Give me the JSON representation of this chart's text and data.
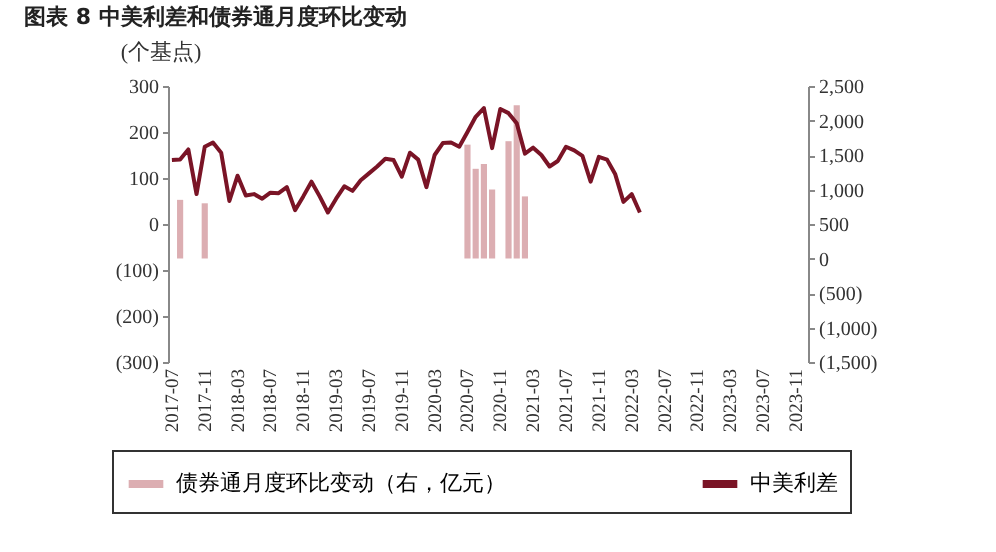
{
  "chart_data": {
    "type": "bar",
    "title": "图表 8  中美利差和债券通月度环比变动",
    "ylabel": "(个基点)",
    "categories": [
      "2017-07",
      null,
      null,
      null,
      "2017-11",
      null,
      null,
      null,
      "2018-03",
      null,
      null,
      null,
      "2018-07",
      null,
      null,
      null,
      "2018-11",
      null,
      null,
      null,
      "2019-03",
      null,
      null,
      null,
      "2019-07",
      null,
      null,
      null,
      "2019-11",
      null,
      null,
      null,
      "2020-03",
      null,
      null,
      null,
      "2020-07",
      null,
      null,
      null,
      "2020-11",
      null,
      null,
      null,
      "2021-03",
      null,
      null,
      null,
      "2021-07",
      null,
      null,
      null,
      "2021-11",
      null,
      null,
      null,
      "2022-03",
      null,
      null,
      null,
      "2022-07",
      null,
      null,
      null,
      "2022-11",
      null,
      null,
      null,
      "2023-03",
      null,
      null,
      null,
      "2023-07",
      null,
      null,
      null,
      "2023-11",
      null
    ],
    "series": [
      {
        "name": "债券通月度环比变动（右，亿元）",
        "axis": "y2",
        "color": "#dcaeb2",
        "values": [
          null,
          850,
          null,
          null,
          800,
          null,
          null,
          null,
          null,
          null,
          null,
          null,
          null,
          null,
          null,
          null,
          null,
          null,
          null,
          null,
          null,
          null,
          null,
          null,
          null,
          null,
          null,
          null,
          null,
          null,
          null,
          null,
          null,
          null,
          null,
          null,
          1650,
          1300,
          1370,
          1000,
          null,
          1700,
          2220,
          900,
          null,
          null,
          null,
          null,
          null,
          null,
          null,
          null,
          null,
          null,
          null,
          null,
          null,
          null,
          null,
          null,
          null,
          null,
          null,
          null,
          null,
          null,
          null,
          null,
          null,
          null,
          null,
          null,
          null,
          null,
          null,
          null,
          null,
          null
        ]
      },
      {
        "name": "中美利差",
        "type": "line",
        "color": "#7a1426",
        "values": [
          139,
          140,
          162,
          65,
          168,
          177,
          155,
          50,
          105,
          62,
          65,
          55,
          68,
          67,
          80,
          30,
          60,
          92,
          60,
          25,
          55,
          82,
          72,
          95,
          110,
          125,
          142,
          139,
          103,
          155,
          140,
          80,
          150,
          176,
          177,
          168,
          200,
          233,
          252,
          165,
          250,
          241,
          219,
          153,
          166,
          150,
          125,
          137,
          168,
          160,
          148,
          92,
          146,
          140,
          108,
          48,
          65,
          25,
          null,
          null,
          null,
          null,
          null,
          null,
          null,
          null,
          null,
          null,
          null,
          null,
          null,
          null,
          null,
          null,
          null,
          null,
          null,
          null
        ]
      }
    ],
    "ylim": [
      -300,
      300
    ],
    "yticks": [
      300,
      200,
      100,
      0,
      {
        "value": -100,
        "label": "(100)"
      },
      {
        "value": -200,
        "label": "(200)"
      },
      {
        "value": -300,
        "label": "(300)"
      }
    ],
    "y2lim": [
      -1500,
      2500
    ],
    "y2ticks": [
      {
        "value": 2500,
        "label": "2,500"
      },
      {
        "value": 2000,
        "label": "2,000"
      },
      {
        "value": 1500,
        "label": "1,500"
      },
      {
        "value": 1000,
        "label": "1,000"
      },
      500,
      0,
      {
        "value": -500,
        "label": "(500)"
      },
      {
        "value": -1000,
        "label": "(1,000)"
      },
      {
        "value": -1500,
        "label": "(1,500)"
      }
    ],
    "legend": "bottom"
  }
}
